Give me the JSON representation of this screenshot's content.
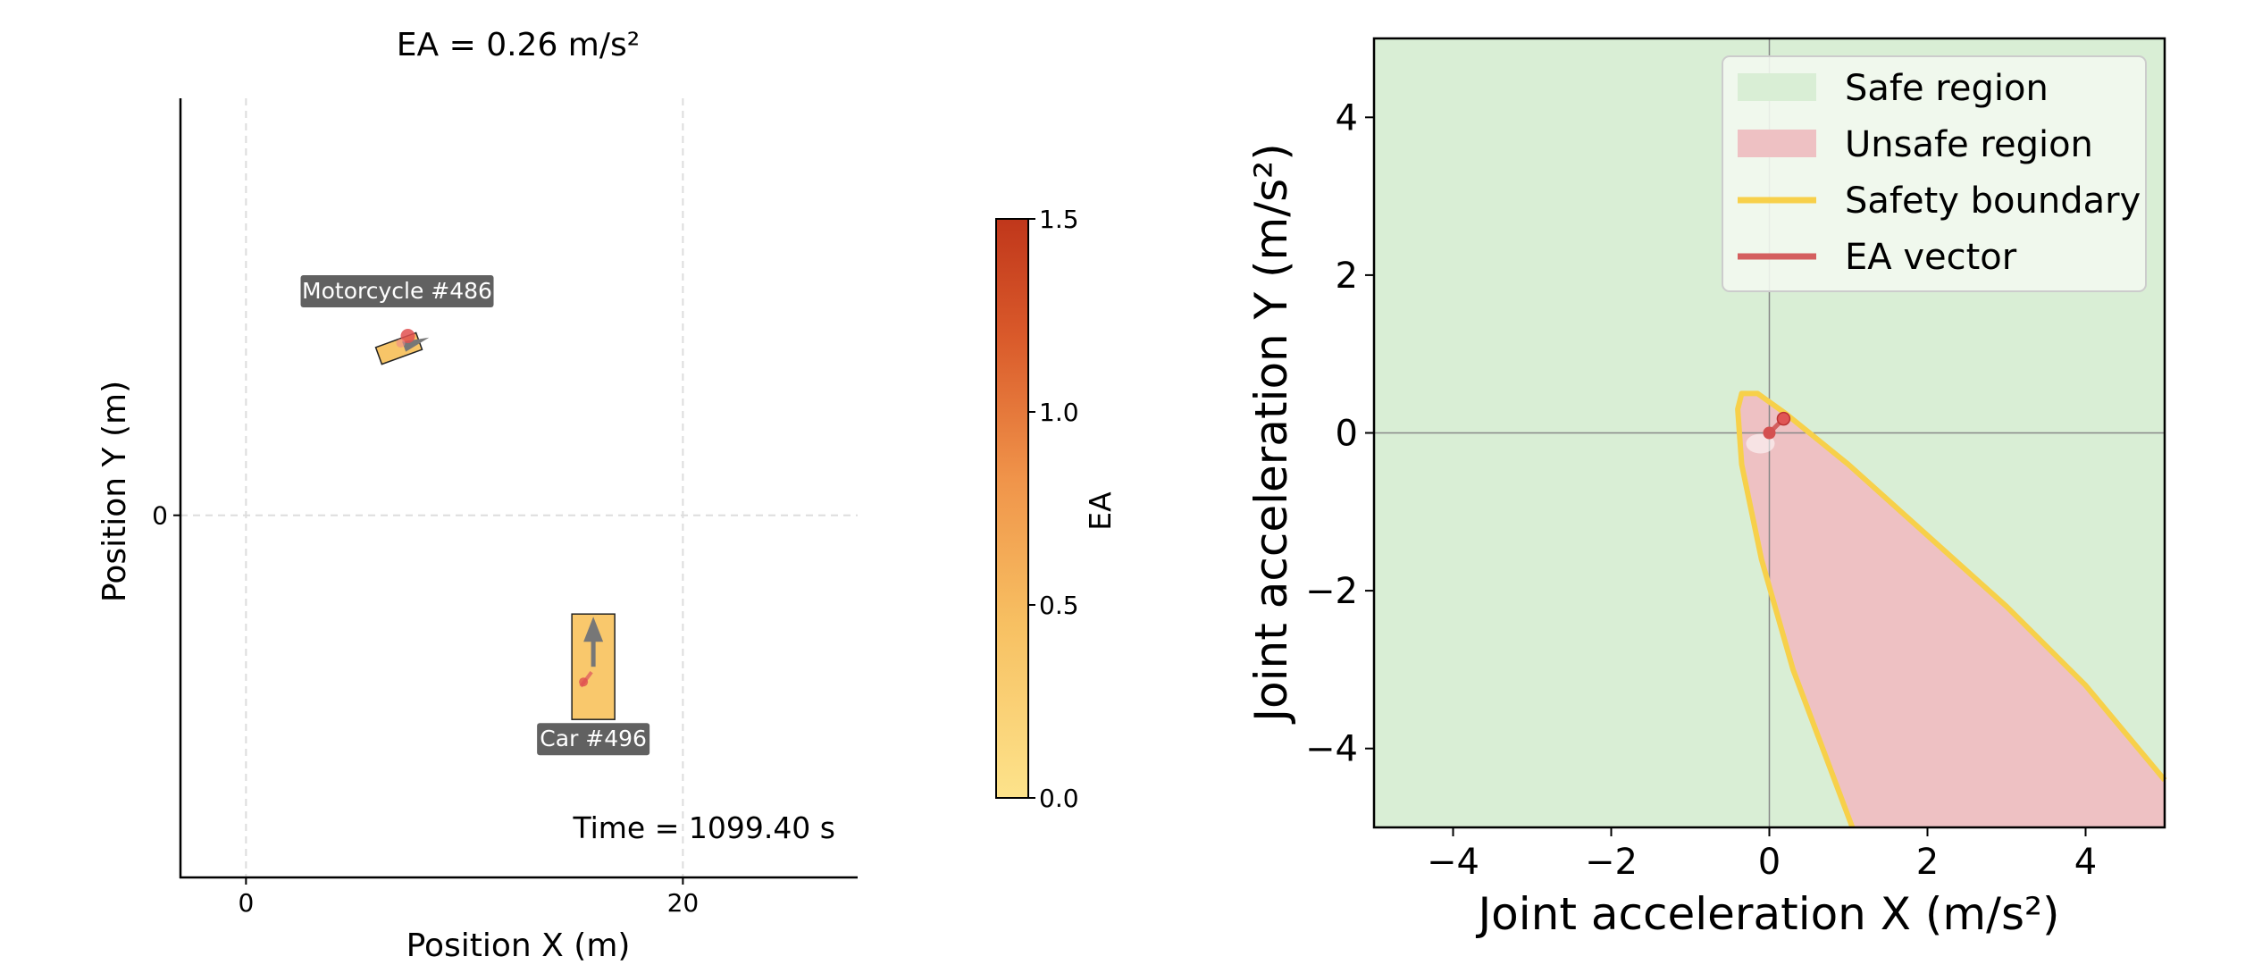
{
  "chart_data": [
    {
      "type": "scatter",
      "title": "EA = 0.26 m/s²",
      "xlabel": "Position X (m)",
      "ylabel": "Position Y (m)",
      "xlim": [
        -3,
        28
      ],
      "ylim": [
        -16.5,
        19
      ],
      "xticks": [
        0,
        20
      ],
      "yticks": [
        0
      ],
      "grid": true,
      "time_label": "Time = 1099.40 s",
      "vehicles": [
        {
          "label": "Motorcycle #486",
          "x": 7,
          "y": 7.6,
          "heading_deg": 20,
          "ea": 0.26,
          "color": "#f7c568"
        },
        {
          "label": "Car #496",
          "x": 15.9,
          "y": -6.9,
          "heading_deg": 90,
          "ea": 0.26,
          "color": "#f9c86c"
        }
      ],
      "colorbar": {
        "label": "EA",
        "min": 0.0,
        "max": 1.5,
        "ticks": [
          "0.0",
          "0.5",
          "1.0",
          "1.5"
        ],
        "colors": [
          "#fde38b",
          "#f7c062",
          "#f0944a",
          "#d9592a",
          "#c0371b"
        ]
      }
    },
    {
      "type": "area",
      "title": "",
      "xlabel": "Joint acceleration X (m/s²)",
      "ylabel": "Joint acceleration Y (m/s²)",
      "xlim": [
        -5,
        5
      ],
      "ylim": [
        -5,
        5
      ],
      "xticks": [
        "−4",
        "−2",
        "0",
        "2",
        "4"
      ],
      "yticks": [
        "−4",
        "−2",
        "0",
        "2",
        "4"
      ],
      "legend_position": "top-right",
      "legend": [
        {
          "label": "Safe region",
          "kind": "patch",
          "color": "#d9eed5"
        },
        {
          "label": "Unsafe region",
          "kind": "patch",
          "color": "#eec1c3"
        },
        {
          "label": "Safety boundary",
          "kind": "line",
          "color": "#f7d04a"
        },
        {
          "label": "EA vector",
          "kind": "line",
          "color": "#d45f5f"
        }
      ],
      "boundary": [
        [
          1.05,
          -5.0
        ],
        [
          0.3,
          -3.0
        ],
        [
          -0.1,
          -1.6
        ],
        [
          -0.35,
          -0.4
        ],
        [
          -0.4,
          0.3
        ],
        [
          -0.35,
          0.5
        ],
        [
          -0.15,
          0.5
        ],
        [
          0.2,
          0.25
        ],
        [
          1.0,
          -0.4
        ],
        [
          2.0,
          -1.3
        ],
        [
          3.0,
          -2.2
        ],
        [
          4.0,
          -3.2
        ],
        [
          5.0,
          -4.4
        ]
      ],
      "ea_point": {
        "x": 0.18,
        "y": 0.18
      }
    }
  ]
}
